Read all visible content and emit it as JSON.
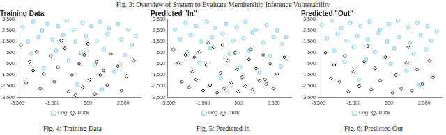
{
  "header": "Fig. 3: Overview of System to Evaluate Membership Inference Vulnerability",
  "chart_data": [
    {
      "type": "scatter",
      "title": "Training Data",
      "caption": "Fig. 4: Training Data",
      "xlim": [
        -3500,
        3500
      ],
      "xticks": [
        -3500,
        -1500,
        500,
        2500
      ],
      "ylim": [
        -3500,
        3500
      ],
      "yticks": [
        -3500,
        -2500,
        -1500,
        -500,
        500,
        1500,
        2500,
        3500
      ],
      "grid": false,
      "legend": "bottom",
      "series": [
        {
          "name": "Dog",
          "color": "#4fc3f7",
          "marker": "circle",
          "x": [
            -3200,
            -2600,
            -2100,
            -1800,
            -1200,
            -700,
            -300,
            200,
            700,
            1200,
            1700,
            2200,
            2800,
            3200,
            -2900,
            -2300,
            -1500,
            -900,
            -200,
            400,
            1000,
            1600,
            2400,
            3000,
            -2700,
            -1300,
            100,
            1400,
            2600,
            -600,
            900,
            -2000,
            2000,
            -100,
            1300
          ],
          "y": [
            2800,
            3300,
            2500,
            3100,
            2900,
            3400,
            2600,
            3200,
            2900,
            3300,
            2700,
            3100,
            2600,
            2000,
            1500,
            1900,
            1700,
            2100,
            1500,
            2000,
            1600,
            2200,
            1700,
            1200,
            400,
            700,
            500,
            800,
            300,
            -200,
            -600,
            -900,
            -1200,
            -2300,
            -2800
          ]
        },
        {
          "name": "Truck",
          "color": "#111111",
          "marker": "diamond",
          "x": [
            -3300,
            -2800,
            -2400,
            -2000,
            -1600,
            -1200,
            -800,
            -400,
            0,
            300,
            600,
            1000,
            1400,
            1800,
            2200,
            2700,
            3100,
            -3000,
            -2200,
            -1400,
            -600,
            200,
            900,
            1600,
            2400,
            -1000,
            500,
            -2600,
            1200,
            -200
          ],
          "y": [
            1200,
            -300,
            600,
            -1400,
            200,
            -800,
            900,
            -1500,
            -500,
            300,
            -1900,
            -300,
            -1100,
            400,
            -700,
            -1600,
            -200,
            -2200,
            -2700,
            -2100,
            -3000,
            -2600,
            -3200,
            -2400,
            -2900,
            1600,
            1300,
            -1100,
            -1500,
            -3300
          ]
        }
      ]
    },
    {
      "type": "scatter",
      "title": "Predicted \"In\"",
      "caption": "Fig. 5: Predicted In",
      "xlim": [
        -3500,
        3500
      ],
      "xticks": [
        -3500,
        -1500,
        500,
        2500
      ],
      "ylim": [
        -3500,
        3500
      ],
      "yticks": [
        -3500,
        -2500,
        -1500,
        -500,
        500,
        1500,
        2500,
        3500
      ],
      "grid": false,
      "legend": "bottom",
      "series": [
        {
          "name": "Dog",
          "color": "#4fc3f7",
          "marker": "circle",
          "x": [
            -3100,
            -2500,
            -1900,
            -1300,
            -800,
            -200,
            400,
            900,
            1500,
            2100,
            2700,
            3200,
            -2800,
            -2200,
            -1600,
            -1000,
            -400,
            200,
            800,
            1300,
            1900,
            2500,
            3000,
            -2400,
            -1100,
            0,
            1100,
            2300,
            -1700,
            600,
            1700,
            -500,
            2900
          ],
          "y": [
            2600,
            3200,
            2900,
            3300,
            2700,
            3100,
            2800,
            3300,
            2600,
            3000,
            2500,
            1900,
            1700,
            2100,
            1500,
            1900,
            2200,
            1600,
            1800,
            2300,
            1400,
            1900,
            1300,
            600,
            900,
            400,
            700,
            200,
            -400,
            -800,
            -1300,
            -1800,
            -700
          ]
        },
        {
          "name": "Truck",
          "color": "#111111",
          "marker": "diamond",
          "x": [
            -3200,
            -2900,
            -2500,
            -2100,
            -1700,
            -1300,
            -900,
            -500,
            -100,
            300,
            700,
            1100,
            1500,
            1900,
            2300,
            2700,
            3100,
            -2700,
            -2300,
            -1900,
            -1500,
            -1100,
            -700,
            -300,
            100,
            500,
            900,
            1300,
            1700,
            2100,
            2500,
            -1200,
            -400,
            400,
            1200,
            -2000,
            2000
          ],
          "y": [
            800,
            -400,
            300,
            -1200,
            600,
            -600,
            1000,
            -1300,
            -200,
            500,
            -1700,
            -100,
            -900,
            300,
            -500,
            -1400,
            100,
            -2100,
            -2600,
            -1900,
            -2900,
            -2400,
            -3100,
            -2700,
            -2200,
            -3000,
            -2500,
            -2800,
            -2000,
            -2300,
            -2700,
            1400,
            1200,
            -1000,
            800,
            100,
            -1900
          ]
        }
      ]
    },
    {
      "type": "scatter",
      "title": "Predicted \"Out\"",
      "caption": "Fig. 6: Predicted Out",
      "xlim": [
        -3500,
        3500
      ],
      "xticks": [
        -3500,
        -1500,
        500,
        2500
      ],
      "ylim": [
        -3500,
        3500
      ],
      "yticks": [
        -3500,
        -2500,
        -1500,
        -500,
        500,
        1500,
        2500,
        3500
      ],
      "grid": false,
      "legend": "bottom",
      "series": [
        {
          "name": "Dog",
          "color": "#4fc3f7",
          "marker": "circle",
          "x": [
            -3300,
            -2700,
            -2200,
            -1700,
            -1100,
            -600,
            0,
            500,
            1000,
            1600,
            2100,
            2700,
            3200,
            -3000,
            -2400,
            -1900,
            -1300,
            -700,
            -100,
            400,
            1100,
            1700,
            2300,
            2900,
            -2600,
            -1500,
            -300,
            800,
            1900,
            2600,
            -2000,
            -800,
            600,
            1500,
            -1200,
            2200
          ],
          "y": [
            3000,
            3400,
            2700,
            3200,
            2900,
            3300,
            2600,
            3100,
            3400,
            2800,
            3200,
            2900,
            2400,
            1800,
            2200,
            1600,
            2000,
            1700,
            2300,
            1500,
            1900,
            1400,
            2100,
            1600,
            700,
            1000,
            600,
            900,
            400,
            800,
            -300,
            -100,
            -500,
            -1100,
            -1900,
            -2400
          ]
        },
        {
          "name": "Truck",
          "color": "#111111",
          "marker": "diamond",
          "x": [
            -3100,
            -2600,
            -2000,
            -1500,
            -900,
            -300,
            300,
            900,
            1500,
            2100,
            2800,
            -2300,
            -1200,
            0,
            1200,
            2400,
            -1800,
            -500,
            700,
            1800,
            3000,
            -2800,
            -700,
            1600
          ],
          "y": [
            500,
            -600,
            200,
            -1200,
            -300,
            -900,
            100,
            -1500,
            -400,
            -1000,
            -200,
            -2100,
            -2500,
            -2000,
            -2700,
            -2300,
            -3000,
            -2800,
            -3100,
            -2900,
            -1700,
            -1800,
            1100,
            1000
          ]
        }
      ]
    }
  ]
}
